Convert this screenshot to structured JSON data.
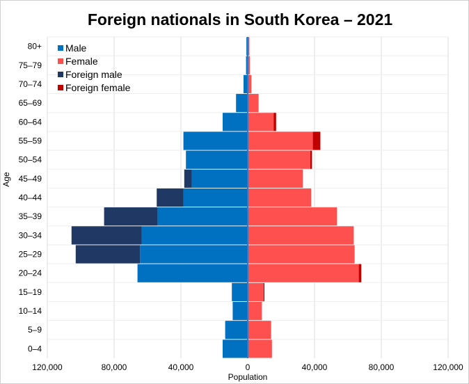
{
  "chart_data": {
    "type": "bar",
    "orientation": "horizontal-diverging",
    "title": "Foreign nationals in South Korea – 2021",
    "xlabel": "Population",
    "ylabel": "Age",
    "categories": [
      "0–4",
      "5–9",
      "10–14",
      "15–19",
      "20–24",
      "25–29",
      "30–34",
      "35–39",
      "40–44",
      "45–49",
      "50–54",
      "55–59",
      "60–64",
      "65–69",
      "70–74",
      "75–79",
      "80+"
    ],
    "xlim": [
      -120000,
      120000
    ],
    "x_ticks": [
      -120000,
      -80000,
      -40000,
      0,
      40000,
      80000,
      120000
    ],
    "x_tick_labels": [
      "120,000",
      "80,000",
      "40,000",
      "0",
      "40,000",
      "80,000",
      "120,000"
    ],
    "grid": true,
    "legend_position": "top-left",
    "colors": {
      "male": "#0070c0",
      "female": "#ff5050",
      "foreign_male": "#1f3864",
      "foreign_female": "#c00000",
      "axis": "#4a6fb5"
    },
    "series": [
      {
        "name": "Male",
        "side": "left",
        "color": "#0070c0",
        "values": [
          15000,
          13500,
          9000,
          9500,
          66000,
          64500,
          63500,
          54000,
          38500,
          33500,
          37000,
          38500,
          15000,
          7000,
          2500,
          1000,
          800
        ]
      },
      {
        "name": "Female",
        "side": "right",
        "color": "#ff5050",
        "values": [
          14500,
          14000,
          8500,
          9500,
          66500,
          64000,
          63500,
          53500,
          38000,
          33000,
          37500,
          39000,
          15500,
          6500,
          2200,
          1300,
          1000
        ]
      },
      {
        "name": "Foreign male",
        "side": "left",
        "color": "#1f3864",
        "values": [
          0,
          0,
          0,
          0,
          0,
          38500,
          42000,
          32000,
          16000,
          4500,
          0,
          0,
          0,
          0,
          0,
          0,
          0
        ]
      },
      {
        "name": "Foreign female",
        "side": "right",
        "color": "#c00000",
        "values": [
          0,
          0,
          0,
          500,
          1500,
          0,
          0,
          0,
          0,
          0,
          1000,
          4500,
          1500,
          0,
          0,
          0,
          0
        ]
      }
    ],
    "legend": [
      "Male",
      "Female",
      "Foreign male",
      "Foreign female"
    ]
  }
}
